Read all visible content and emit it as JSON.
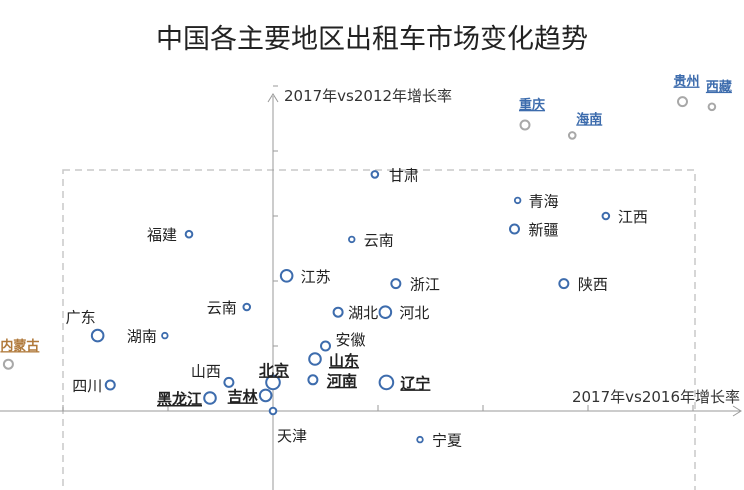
{
  "chart_data": {
    "type": "scatter",
    "title": "中国各主要地区出租车市场变化趋势",
    "xlabel": "2017年vs2016年增长率",
    "ylabel": "2017年vs2012年增长率",
    "grid": false,
    "colors": {
      "point_stroke": "#3d6cad",
      "outlier_stroke": "#a8a8a8",
      "outlier_label_blue": "#3d6cad",
      "outlier_label_orange": "#b0793a",
      "axis": "#9a9a9a",
      "box": "#c8c8c8"
    },
    "points": [
      {
        "label": "甘肃",
        "x": 0.97,
        "y": 0.91,
        "size": "s",
        "style": "normal"
      },
      {
        "label": "青海",
        "x": 2.33,
        "y": 0.81,
        "size": "xs",
        "style": "normal"
      },
      {
        "label": "江西",
        "x": 3.17,
        "y": 0.75,
        "size": "s",
        "style": "normal"
      },
      {
        "label": "福建",
        "x": -0.8,
        "y": 0.68,
        "size": "s",
        "style": "normal"
      },
      {
        "label": "云南",
        "x": 0.75,
        "y": 0.66,
        "size": "xs",
        "style": "normal"
      },
      {
        "label": "新疆",
        "x": 2.3,
        "y": 0.7,
        "size": "m",
        "style": "normal"
      },
      {
        "label": "江苏",
        "x": 0.13,
        "y": 0.52,
        "size": "l",
        "style": "normal"
      },
      {
        "label": "浙江",
        "x": 1.17,
        "y": 0.49,
        "size": "m",
        "style": "normal"
      },
      {
        "label": "陕西",
        "x": 2.77,
        "y": 0.49,
        "size": "m",
        "style": "normal"
      },
      {
        "label": "云南",
        "x": -0.25,
        "y": 0.4,
        "size": "s",
        "style": "normal"
      },
      {
        "label": "湖北",
        "x": 0.62,
        "y": 0.38,
        "size": "m",
        "style": "normal"
      },
      {
        "label": "河北",
        "x": 1.07,
        "y": 0.38,
        "size": "l",
        "style": "normal"
      },
      {
        "label": "广东",
        "x": -1.67,
        "y": 0.29,
        "size": "l",
        "style": "normal"
      },
      {
        "label": "湖南",
        "x": -1.03,
        "y": 0.29,
        "size": "xs",
        "style": "normal"
      },
      {
        "label": "安徽",
        "x": 0.5,
        "y": 0.25,
        "size": "m",
        "style": "normal"
      },
      {
        "label": "北京",
        "x": 0.0,
        "y": 0.11,
        "size": "xl",
        "style": "bold"
      },
      {
        "label": "山东",
        "x": 0.4,
        "y": 0.2,
        "size": "l",
        "style": "bold"
      },
      {
        "label": "河南",
        "x": 0.38,
        "y": 0.12,
        "size": "m",
        "style": "bold"
      },
      {
        "label": "辽宁",
        "x": 1.08,
        "y": 0.11,
        "size": "xl",
        "style": "bold"
      },
      {
        "label": "山西",
        "x": -0.42,
        "y": 0.11,
        "size": "m",
        "style": "normal"
      },
      {
        "label": "四川",
        "x": -1.55,
        "y": 0.1,
        "size": "m",
        "style": "normal"
      },
      {
        "label": "黑龙江",
        "x": -0.6,
        "y": 0.05,
        "size": "l",
        "style": "bold"
      },
      {
        "label": "吉林",
        "x": -0.07,
        "y": 0.06,
        "size": "l",
        "style": "bold"
      },
      {
        "label": "天津",
        "x": 0.0,
        "y": 0.0,
        "size": "s",
        "style": "normal"
      },
      {
        "label": "宁夏",
        "x": 1.4,
        "y": -0.11,
        "size": "xs",
        "style": "normal"
      },
      {
        "label": "重庆",
        "x": 2.4,
        "y": 1.1,
        "size": "m",
        "style": "outlier-blue"
      },
      {
        "label": "海南",
        "x": 2.85,
        "y": 1.06,
        "size": "s",
        "style": "outlier-blue"
      },
      {
        "label": "贵州",
        "x": 3.9,
        "y": 1.19,
        "size": "m",
        "style": "outlier-blue"
      },
      {
        "label": "西藏",
        "x": 4.18,
        "y": 1.17,
        "size": "s",
        "style": "outlier-blue"
      },
      {
        "label": "内蒙古",
        "x": -2.52,
        "y": 0.18,
        "size": "m",
        "style": "outlier-orange"
      }
    ]
  }
}
